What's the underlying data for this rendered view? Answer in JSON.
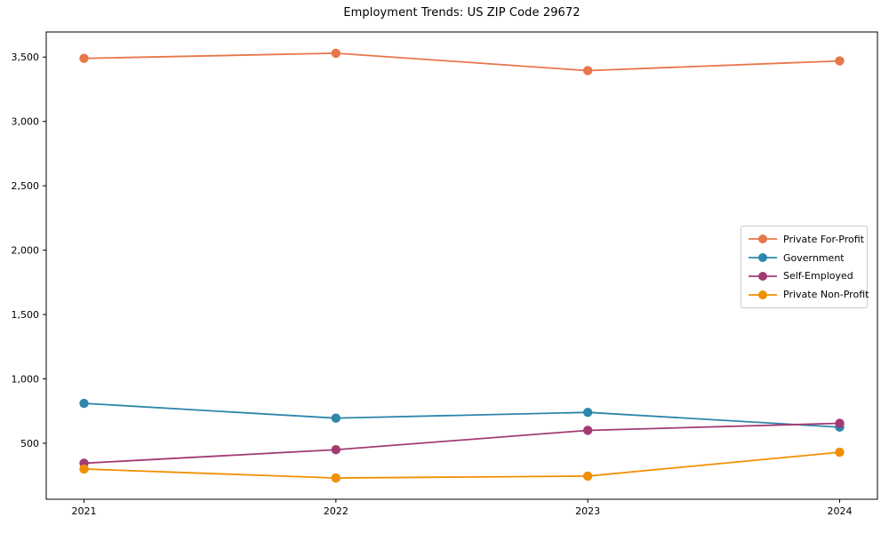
{
  "chart_data": {
    "type": "line",
    "title": "Employment Trends: US ZIP Code 29672",
    "xlabel": "",
    "ylabel": "",
    "categories": [
      "2021",
      "2022",
      "2023",
      "2024"
    ],
    "series": [
      {
        "name": "Private For-Profit",
        "color": "#E8764B",
        "values": [
          3490,
          3530,
          3395,
          3470
        ]
      },
      {
        "name": "Government",
        "color": "#2E86AB",
        "values": [
          810,
          695,
          740,
          625
        ]
      },
      {
        "name": "Self-Employed",
        "color": "#A23B72",
        "values": [
          345,
          450,
          600,
          655
        ]
      },
      {
        "name": "Private Non-Profit",
        "color": "#F18F01",
        "values": [
          300,
          230,
          245,
          430
        ]
      }
    ],
    "y_ticks": [
      500,
      1000,
      1500,
      2000,
      2500,
      3000,
      3500
    ],
    "ylim": [
      65,
      3695
    ],
    "x_margin_frac": 0.05,
    "grid": false,
    "legend_position": "center-right",
    "marker": "circle",
    "frame_color": "#000000",
    "background_color": "#ffffff"
  }
}
